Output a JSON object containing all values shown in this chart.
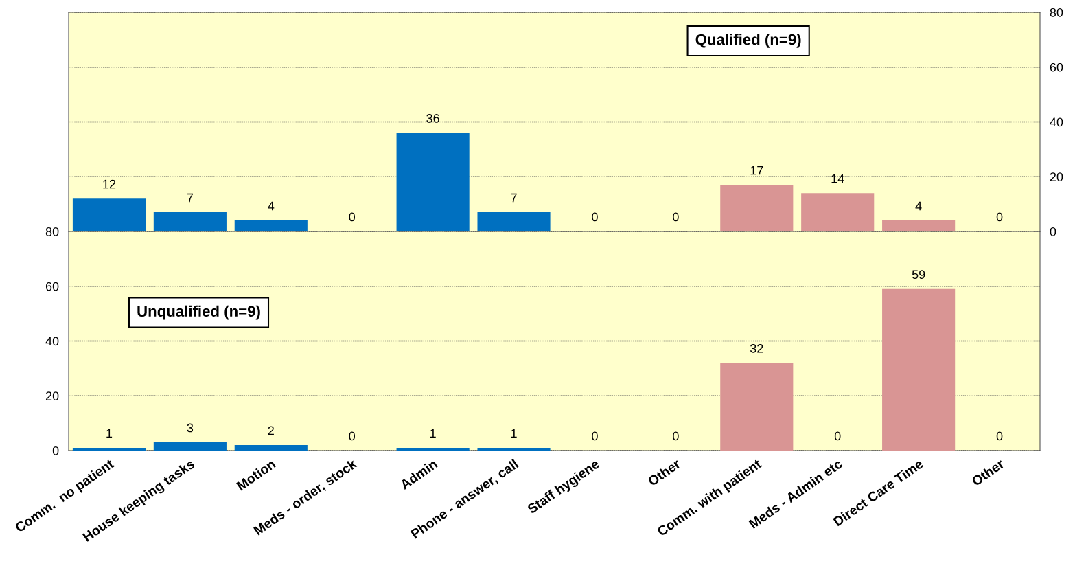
{
  "chart_data": [
    {
      "type": "bar",
      "categories": [
        null,
        null,
        null,
        null,
        null,
        null,
        null,
        null,
        null,
        null,
        null,
        null
      ],
      "values": [
        12,
        7,
        4,
        0,
        36,
        7,
        0,
        0,
        17,
        14,
        4,
        0
      ],
      "colors": [
        "#0070c0",
        "#0070c0",
        "#0070c0",
        "#0070c0",
        "#0070c0",
        "#0070c0",
        "#0070c0",
        "#0070c0",
        "#d99594",
        "#d99594",
        "#d99594",
        "#d99594"
      ],
      "ylim": [
        0,
        80
      ],
      "yticks": [
        0,
        20,
        40,
        60,
        80
      ],
      "grid": "y",
      "data_labels": true,
      "tick_labels": "y",
      "annotations": [
        "Qualified (n=9)"
      ]
    },
    {
      "type": "bar",
      "categories": [
        "Comm.  no patient",
        "House keeping tasks",
        "Motion",
        "Meds - order, stock",
        "Admin",
        "Phone - answer, call",
        "Staff hygiene",
        "Other",
        "Comm. with patient",
        "Meds - Admin etc",
        "Direct Care Time",
        "Other"
      ],
      "values": [
        1,
        3,
        2,
        0,
        1,
        1,
        0,
        0,
        32,
        0,
        59,
        0
      ],
      "colors": [
        "#0070c0",
        "#0070c0",
        "#0070c0",
        "#0070c0",
        "#0070c0",
        "#0070c0",
        "#0070c0",
        "#0070c0",
        "#d99594",
        "#d99594",
        "#d99594",
        "#d99594"
      ],
      "ylim": [
        0,
        80
      ],
      "yticks": [
        0,
        20,
        40,
        60,
        80
      ],
      "grid": "y",
      "data_labels": true,
      "annotations": [
        "Unqualified (n=9)"
      ]
    }
  ]
}
